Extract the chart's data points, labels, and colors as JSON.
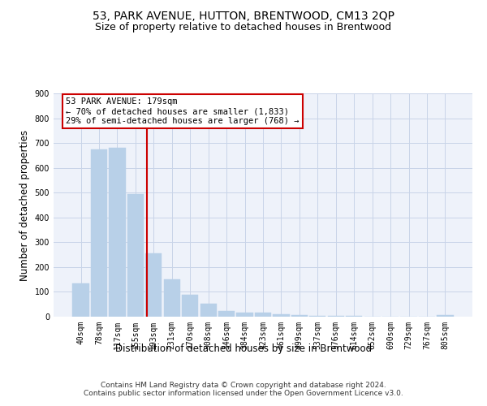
{
  "title": "53, PARK AVENUE, HUTTON, BRENTWOOD, CM13 2QP",
  "subtitle": "Size of property relative to detached houses in Brentwood",
  "xlabel": "Distribution of detached houses by size in Brentwood",
  "ylabel": "Number of detached properties",
  "bar_labels": [
    "40sqm",
    "78sqm",
    "117sqm",
    "155sqm",
    "193sqm",
    "231sqm",
    "270sqm",
    "308sqm",
    "346sqm",
    "384sqm",
    "423sqm",
    "461sqm",
    "499sqm",
    "537sqm",
    "576sqm",
    "614sqm",
    "652sqm",
    "690sqm",
    "729sqm",
    "767sqm",
    "805sqm"
  ],
  "bar_values": [
    135,
    675,
    680,
    495,
    255,
    150,
    90,
    52,
    23,
    18,
    18,
    10,
    7,
    4,
    4,
    2,
    1,
    1,
    1,
    0,
    7
  ],
  "bar_color": "#b8d0e8",
  "bar_edgecolor": "#b8d0e8",
  "vline_color": "#cc0000",
  "annotation_text": "53 PARK AVENUE: 179sqm\n← 70% of detached houses are smaller (1,833)\n29% of semi-detached houses are larger (768) →",
  "annotation_box_color": "#ffffff",
  "annotation_box_edgecolor": "#cc0000",
  "ylim": [
    0,
    900
  ],
  "yticks": [
    0,
    100,
    200,
    300,
    400,
    500,
    600,
    700,
    800,
    900
  ],
  "footer_line1": "Contains HM Land Registry data © Crown copyright and database right 2024.",
  "footer_line2": "Contains public sector information licensed under the Open Government Licence v3.0.",
  "plot_background": "#eef2fa",
  "title_fontsize": 10,
  "subtitle_fontsize": 9,
  "axis_label_fontsize": 8.5,
  "tick_fontsize": 7,
  "footer_fontsize": 6.5
}
